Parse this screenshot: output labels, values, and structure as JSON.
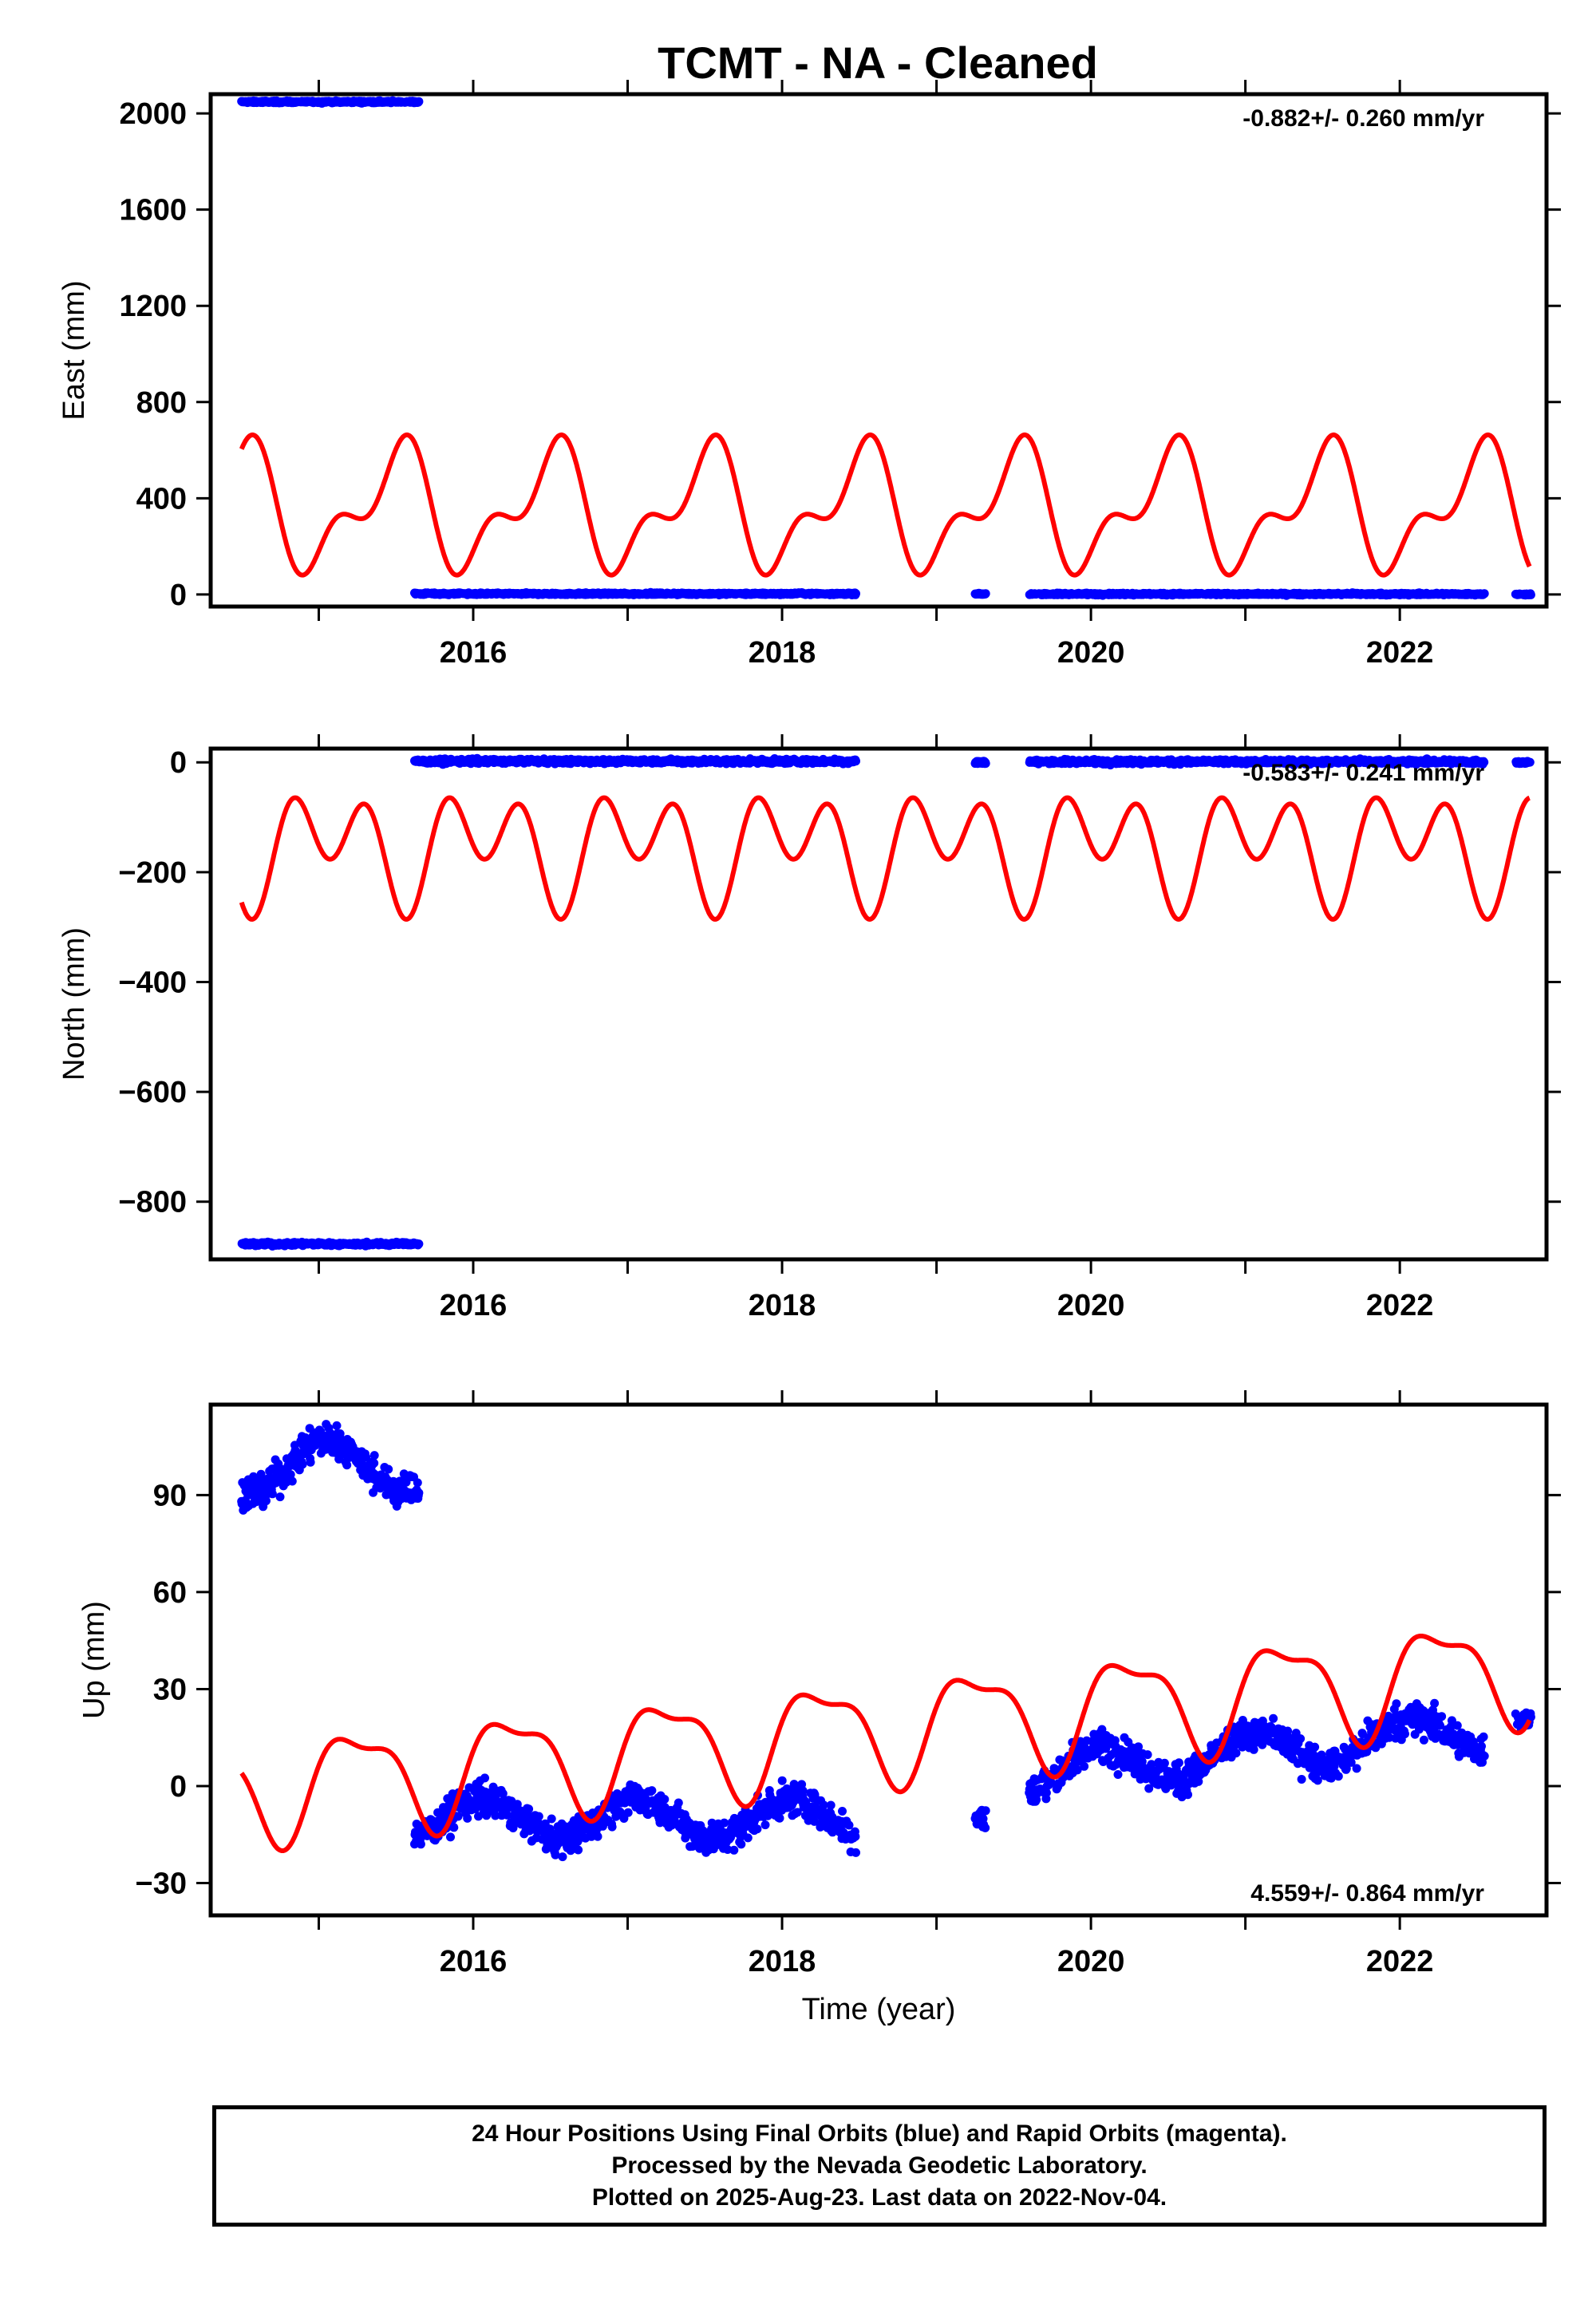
{
  "title": "TCMT  - NA - Cleaned",
  "colors": {
    "observed": "#0000ff",
    "model": "#ff0000"
  },
  "chart_data": [
    {
      "type": "scatter",
      "panel": "east",
      "ylabel": "East (mm)",
      "xlabel": "",
      "rate_label": "-0.882+/- 0.260 mm/yr",
      "xlim": [
        2014.3,
        2022.95
      ],
      "ylim": [
        -50,
        2080
      ],
      "yticks": [
        0,
        400,
        800,
        1200,
        1600,
        2000
      ],
      "xticks": [
        2016,
        2018,
        2020,
        2022
      ],
      "observed": {
        "segments": [
          {
            "x_start": 2014.5,
            "x_end": 2015.65,
            "level": 2048,
            "noise": 4
          },
          {
            "x_start": 2015.62,
            "x_end": 2018.48,
            "level": 3,
            "noise": 4
          },
          {
            "x_start": 2019.25,
            "x_end": 2019.32,
            "level": 2,
            "noise": 3
          },
          {
            "x_start": 2019.6,
            "x_end": 2022.55,
            "level": 2,
            "noise": 4
          },
          {
            "x_start": 2022.75,
            "x_end": 2022.85,
            "level": 1,
            "noise": 3
          }
        ]
      },
      "model": {
        "x_start": 2014.5,
        "x_end": 2022.84,
        "offset": 355,
        "trend": 0,
        "annual_cos": -212,
        "annual_sin": 0,
        "semiannual_cos": 38,
        "semiannual_sin": 120
      }
    },
    {
      "type": "scatter",
      "panel": "north",
      "ylabel": "North (mm)",
      "xlabel": "",
      "rate_label": "-0.583+/- 0.241 mm/yr",
      "xlim": [
        2014.3,
        2022.95
      ],
      "ylim": [
        -905,
        25
      ],
      "yticks": [
        0,
        -200,
        -400,
        -600,
        -800
      ],
      "xticks": [
        2016,
        2018,
        2020,
        2022
      ],
      "observed": {
        "segments": [
          {
            "x_start": 2014.5,
            "x_end": 2015.65,
            "level": -877,
            "noise": 3
          },
          {
            "x_start": 2015.62,
            "x_end": 2018.48,
            "level": 2,
            "noise": 4
          },
          {
            "x_start": 2019.25,
            "x_end": 2019.32,
            "level": 0,
            "noise": 3
          },
          {
            "x_start": 2019.6,
            "x_end": 2022.55,
            "level": 1,
            "noise": 4
          },
          {
            "x_start": 2022.75,
            "x_end": 2022.85,
            "level": 0,
            "noise": 3
          }
        ]
      },
      "model": {
        "x_start": 2014.5,
        "x_end": 2022.84,
        "offset": -153,
        "trend": 0,
        "annual_cos": 52,
        "annual_sin": 18,
        "semiannual_cos": -50,
        "semiannual_sin": -60
      }
    },
    {
      "type": "scatter",
      "panel": "up",
      "ylabel": "Up (mm)",
      "xlabel": "Time (year)",
      "rate_label": "4.559+/- 0.864 mm/yr",
      "xlim": [
        2014.3,
        2022.95
      ],
      "ylim": [
        -40,
        118
      ],
      "yticks": [
        -30,
        0,
        30,
        60,
        90
      ],
      "xticks": [
        2016,
        2018,
        2020,
        2022
      ],
      "observed": {
        "segments": [
          {
            "x_start": 2014.5,
            "x_end": 2015.65,
            "level": 99,
            "noise": 5,
            "annual": 8
          },
          {
            "x_start": 2015.62,
            "x_end": 2018.48,
            "level": -10,
            "noise": 5,
            "annual": 6
          },
          {
            "x_start": 2019.25,
            "x_end": 2019.32,
            "level": -10,
            "noise": 4,
            "annual": 0
          },
          {
            "x_start": 2019.6,
            "x_end": 2022.55,
            "level": 4,
            "noise": 5,
            "annual": 6,
            "trend": 4.5
          },
          {
            "x_start": 2022.75,
            "x_end": 2022.85,
            "level": 21,
            "noise": 3,
            "annual": 0
          }
        ]
      },
      "model": {
        "x_start": 2014.5,
        "x_end": 2022.84,
        "offset": -1,
        "trend": 4.559,
        "x_ref": 2014.5,
        "annual_cos": 0,
        "annual_sin": 15,
        "semiannual_cos": 5,
        "semiannual_sin": 2
      }
    }
  ],
  "footer": {
    "line1": "24 Hour Positions Using Final Orbits (blue) and Rapid Orbits (magenta).",
    "line2": "Processed by the Nevada Geodetic Laboratory.",
    "line3": "Plotted on 2025-Aug-23. Last data on 2022-Nov-04."
  }
}
